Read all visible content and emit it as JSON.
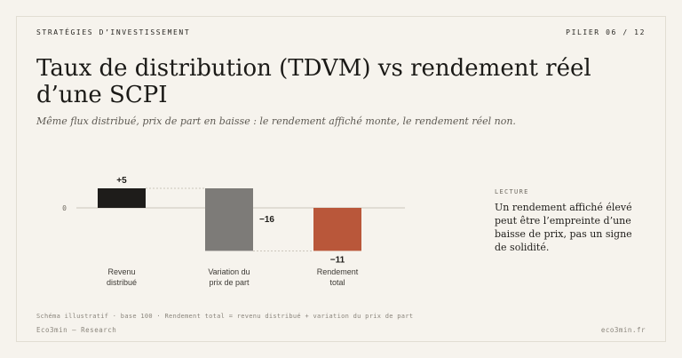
{
  "header": {
    "kicker": "STRATÉGIES D’INVESTISSEMENT",
    "pillar": "PILIER 06 / 12"
  },
  "title": "Taux de distribution (TDVM) vs rendement réel d’une SCPI",
  "subtitle": "Même flux distribué, prix de part en baisse : le rendement affiché monte, le rendement réel non.",
  "chart_data": {
    "type": "bar",
    "subtype": "waterfall",
    "categories": [
      "Revenu distribué",
      "Variation du prix de part",
      "Rendement total"
    ],
    "category_lines": [
      [
        "Revenu",
        "distribué"
      ],
      [
        "Variation du",
        "prix de part"
      ],
      [
        "Rendement",
        "total"
      ]
    ],
    "values": [
      5,
      -16,
      -11
    ],
    "value_labels": [
      "+5",
      "−16",
      "−11"
    ],
    "baseline_tick": "0",
    "colors": [
      "#1e1c1a",
      "#7d7b78",
      "#b9573a"
    ],
    "grid": false,
    "legend": "none"
  },
  "side": {
    "kicker": "LECTURE",
    "text": "Un rendement affiché élevé peut être l’empreinte d’une baisse de prix, pas un signe de solidité."
  },
  "footer": {
    "note": "Schéma illustratif · base 100 · Rendement total = revenu distribué + variation du prix de part",
    "brand": "Eco3min — Research",
    "site": "eco3min.fr"
  }
}
